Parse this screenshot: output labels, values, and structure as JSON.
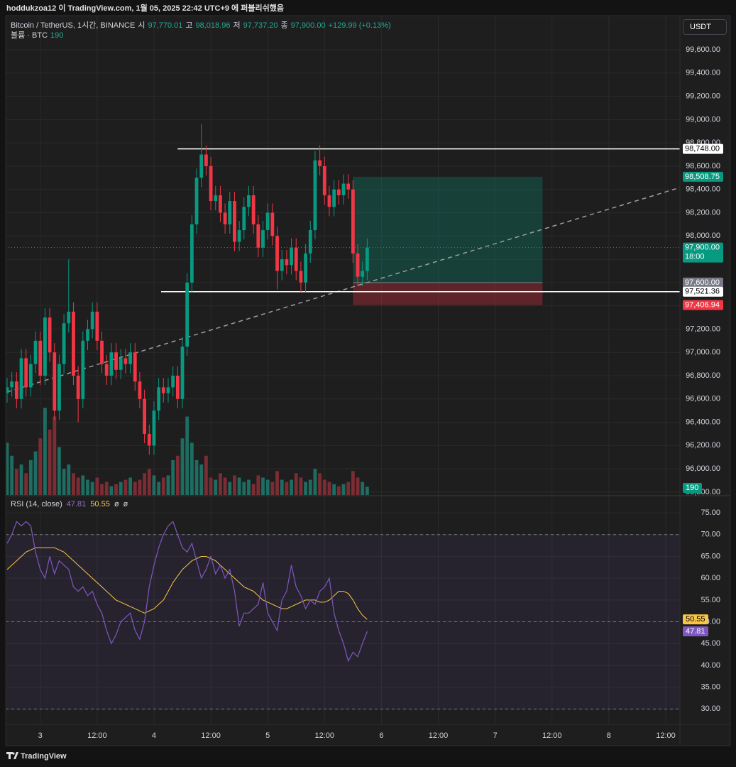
{
  "chart_data": {
    "type": "candlestick",
    "header": "hoddukzoa12 이 TradingView.com, 1월 05, 2025 22:42 UTC+9 에 퍼블리쉬했음",
    "symbol": "Bitcoin / TetherUS, 1시간, BINANCE",
    "ohlc_legend": [
      {
        "label": "시",
        "value": "97,770.01"
      },
      {
        "label": "고",
        "value": "98,018.96"
      },
      {
        "label": "저",
        "value": "97,737.20"
      },
      {
        "label": "종",
        "value": "97,900.00"
      }
    ],
    "change": "+129.99 (+0.13%)",
    "currency": "USDT",
    "volume_title": "볼륨 · BTC",
    "brand": "TradingView",
    "colors": {
      "up": "#089981",
      "down": "#f23645",
      "up_volume": "#1d6d62",
      "down_volume": "#7d2c33"
    },
    "xlim": [
      0,
      142
    ],
    "xticks": [
      {
        "value": 7,
        "label": "3"
      },
      {
        "value": 19,
        "label": "12:00"
      },
      {
        "value": 31,
        "label": "4"
      },
      {
        "value": 43,
        "label": "12:00"
      },
      {
        "value": 55,
        "label": "5"
      },
      {
        "value": 67,
        "label": "12:00"
      },
      {
        "value": 79,
        "label": "6"
      },
      {
        "value": 91,
        "label": "12:00"
      },
      {
        "value": 103,
        "label": "7"
      },
      {
        "value": 115,
        "label": "12:00"
      },
      {
        "value": 127,
        "label": "8"
      },
      {
        "value": 139,
        "label": "12:00"
      }
    ],
    "ylim": [
      95775,
      99893
    ],
    "yticks": [
      {
        "value": 95800,
        "label": "95,800.00"
      },
      {
        "value": 96000,
        "label": "96,000.00"
      },
      {
        "value": 96200,
        "label": "96,200.00"
      },
      {
        "value": 96400,
        "label": "96,400.00"
      },
      {
        "value": 96600,
        "label": "96,600.00"
      },
      {
        "value": 96800,
        "label": "96,800.00"
      },
      {
        "value": 97000,
        "label": "97,000.00"
      },
      {
        "value": 97200,
        "label": "97,200.00"
      },
      {
        "value": 97400,
        "label": "97,400.00"
      },
      {
        "value": 97600,
        "label": "97,600.00"
      },
      {
        "value": 97800,
        "label": "97,800.00"
      },
      {
        "value": 98000,
        "label": "98,000.00"
      },
      {
        "value": 98200,
        "label": "98,200.00"
      },
      {
        "value": 98400,
        "label": "98,400.00"
      },
      {
        "value": 98600,
        "label": "98,600.00"
      },
      {
        "value": 98800,
        "label": "98,800.00"
      },
      {
        "value": 99000,
        "label": "99,000.00"
      },
      {
        "value": 99200,
        "label": "99,200.00"
      },
      {
        "value": 99400,
        "label": "99,400.00"
      },
      {
        "value": 99600,
        "label": "99,600.00"
      }
    ],
    "opens": [
      96650,
      96700,
      96750,
      96600,
      96950,
      96700,
      96900,
      97100,
      96800,
      97300,
      97000,
      96500,
      96900,
      97250,
      97350,
      96800,
      96600,
      97100,
      97200,
      97350,
      97100,
      96900,
      96800,
      97000,
      96850,
      96950,
      96900,
      97000,
      96750,
      96600,
      96300,
      96200,
      96500,
      96700,
      96650,
      96700,
      96800,
      96600,
      97050,
      97600,
      98100,
      98500,
      98700,
      98600,
      98300,
      98350,
      98200,
      98100,
      98300,
      97950,
      98050,
      98250,
      98350,
      98100,
      97900,
      98050,
      98200,
      98000,
      97700,
      97800,
      97750,
      97900,
      97700,
      97600,
      97850,
      98050,
      98650,
      98600,
      98350,
      98250,
      98400,
      98350,
      98450,
      98400,
      97850,
      97650,
      97700
    ],
    "highs": [
      96780,
      96830,
      96830,
      97030,
      97030,
      96980,
      97180,
      97180,
      97380,
      97380,
      97080,
      96980,
      97330,
      97800,
      97430,
      96880,
      97180,
      97280,
      97430,
      97430,
      97180,
      96980,
      97080,
      97080,
      97030,
      97030,
      97080,
      97080,
      96830,
      96680,
      96380,
      96580,
      96780,
      96780,
      96780,
      96880,
      96880,
      97130,
      97680,
      98180,
      98580,
      98960,
      98780,
      98680,
      98430,
      98430,
      98280,
      98380,
      98380,
      98130,
      98330,
      98430,
      98430,
      98180,
      98130,
      98280,
      98280,
      98080,
      97880,
      97880,
      97980,
      97980,
      97780,
      97930,
      98130,
      98730,
      98780,
      98680,
      98430,
      98480,
      98480,
      98530,
      98530,
      98480,
      97930,
      97780,
      97980
    ],
    "lows": [
      96570,
      96620,
      96520,
      96520,
      96620,
      96620,
      96820,
      96720,
      96720,
      96920,
      96420,
      96420,
      96820,
      97170,
      96720,
      96400,
      96520,
      97020,
      97120,
      97020,
      96820,
      96720,
      96720,
      96770,
      96770,
      96820,
      96820,
      96670,
      96520,
      96220,
      96120,
      96120,
      96420,
      96570,
      96570,
      96620,
      96520,
      96520,
      96970,
      97520,
      98020,
      98420,
      98520,
      98220,
      98220,
      98120,
      98020,
      98020,
      97870,
      97870,
      97970,
      98170,
      98020,
      97820,
      97820,
      97970,
      97920,
      97540,
      97620,
      97670,
      97670,
      97620,
      97520,
      97520,
      97770,
      97970,
      98520,
      98270,
      98170,
      98170,
      98270,
      98270,
      98320,
      97770,
      97570,
      97570,
      97620
    ],
    "closes": [
      96700,
      96750,
      96600,
      96950,
      96700,
      96900,
      97100,
      96800,
      97300,
      97000,
      96500,
      96900,
      97250,
      97350,
      96800,
      96600,
      97100,
      97200,
      97350,
      97100,
      96900,
      96800,
      97000,
      96850,
      96950,
      96900,
      97000,
      96750,
      96600,
      96300,
      96200,
      96500,
      96700,
      96650,
      96700,
      96800,
      96600,
      97050,
      97600,
      98100,
      98500,
      98700,
      98600,
      98300,
      98350,
      98200,
      98100,
      98300,
      97950,
      98050,
      98250,
      98350,
      98100,
      97900,
      98050,
      98200,
      98000,
      97700,
      97800,
      97750,
      97900,
      97700,
      97600,
      97850,
      98050,
      98650,
      98600,
      98350,
      98250,
      98400,
      98350,
      98450,
      98400,
      97850,
      97650,
      97700,
      97900
    ],
    "volume": {
      "ylim": [
        0,
        11000
      ],
      "values": [
        1200,
        900,
        600,
        700,
        500,
        800,
        1000,
        1300,
        2000,
        1500,
        1800,
        1100,
        600,
        700,
        500,
        400,
        450,
        350,
        300,
        400,
        250,
        300,
        200,
        250,
        300,
        350,
        400,
        300,
        350,
        500,
        600,
        450,
        300,
        400,
        450,
        800,
        900,
        1300,
        1800,
        1200,
        800,
        700,
        900,
        400,
        350,
        500,
        400,
        300,
        450,
        400,
        300,
        350,
        250,
        450,
        400,
        350,
        300,
        550,
        350,
        300,
        350,
        500,
        400,
        300,
        350,
        600,
        500,
        350,
        300,
        250,
        200,
        250,
        300,
        550,
        400,
        300,
        190
      ]
    },
    "current_price": {
      "value": 97900,
      "label": "97,900.00",
      "countdown": "18:00",
      "color": "#089981"
    },
    "drawings": {
      "horizontal": [
        {
          "value": 98748,
          "from": 36,
          "label": "98,748.00"
        },
        {
          "value": 97521.36,
          "from": 32.5,
          "label": "97,521.36"
        }
      ],
      "trend": {
        "x": [
          0,
          142
        ],
        "y": [
          96660,
          98416
        ]
      },
      "position": {
        "from": 73,
        "to": 113,
        "entry": 97600,
        "target": 98508.75,
        "stop": 97406.94,
        "entry_label": "97,600.00",
        "target_label": "98,508.75",
        "stop_label": "97,406.94"
      }
    },
    "rsi": {
      "title": "RSI (14, close)",
      "na": [
        "ø",
        "ø"
      ],
      "color": "#7e57c2",
      "ylim": [
        26.47,
        78.76
      ],
      "bands": [
        30,
        50,
        70
      ],
      "yticks": [
        {
          "value": 30,
          "label": "30.00"
        },
        {
          "value": 35,
          "label": "35.00"
        },
        {
          "value": 40,
          "label": "40.00"
        },
        {
          "value": 45,
          "label": "45.00"
        },
        {
          "value": 50,
          "label": "50.00"
        },
        {
          "value": 55,
          "label": "55.00"
        },
        {
          "value": 60,
          "label": "60.00"
        },
        {
          "value": 65,
          "label": "65.00"
        },
        {
          "value": 70,
          "label": "70.00"
        },
        {
          "value": 75,
          "label": "75.00"
        }
      ],
      "values": [
        68,
        70,
        73,
        72,
        73,
        72,
        66,
        62,
        60,
        65,
        61,
        64,
        63,
        62,
        58,
        57,
        58,
        56,
        57,
        54,
        52,
        48,
        45,
        47,
        50,
        51,
        52,
        48,
        46,
        50,
        58,
        63,
        67,
        70,
        72,
        73,
        70,
        67,
        66,
        68,
        64,
        60,
        62,
        65,
        61,
        63,
        60,
        62,
        57,
        49,
        52,
        52,
        53,
        54,
        59,
        52,
        50,
        48,
        55,
        57,
        63,
        58,
        56,
        53,
        55,
        54,
        57,
        58,
        60,
        52,
        48,
        45,
        41,
        43,
        42,
        45,
        47.81
      ],
      "ma": {
        "color": "#f7c548",
        "values": [
          62,
          63,
          64,
          65,
          66,
          66.5,
          67,
          67,
          67,
          67,
          67,
          66.5,
          66,
          65,
          64,
          63,
          62,
          61,
          60,
          59,
          58,
          57,
          56,
          55,
          54.5,
          54,
          53.5,
          53,
          52.5,
          52,
          52.5,
          53,
          54,
          55,
          57,
          59,
          60.5,
          62,
          63,
          64,
          64.5,
          65,
          65,
          64.5,
          64,
          63,
          62,
          61,
          60,
          59,
          58,
          57.5,
          57,
          56,
          55,
          54.5,
          54,
          53.5,
          53,
          53,
          53.5,
          54,
          54.5,
          55,
          55,
          55,
          54.5,
          54.5,
          55,
          56,
          57,
          57,
          56.5,
          55,
          53,
          51.5,
          50.55
        ]
      }
    }
  }
}
